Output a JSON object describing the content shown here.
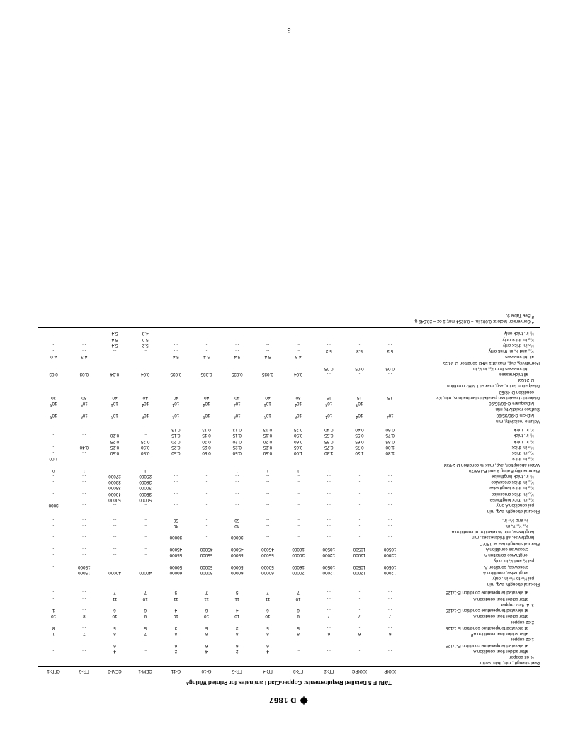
{
  "doc_id": "D 1867",
  "page_number": "3",
  "title": "TABLE 5  Detailed Requirements: Copper-Clad Laminates for Printed Wiring",
  "title_sup": "A",
  "col_widths_pct": [
    26.8,
    6.1,
    6.1,
    6.1,
    6.1,
    6.1,
    6.1,
    6.1,
    6.1,
    6.1,
    6.1,
    6.1,
    6.1
  ],
  "cols": [
    "",
    "XXXP",
    "XXXPC",
    "FR-2",
    "FR-3",
    "FR-4",
    "FR-5",
    "G-10",
    "G-11",
    "CEM-1",
    "CEM-3",
    "FR-6",
    "CFR-1"
  ],
  "rows": [
    {
      "label": "Peel strength, min, lb/in. width:",
      "ind": 0,
      "v": [
        "",
        "",
        "",
        "",
        "",
        "",
        "",
        "",
        "",
        "",
        "",
        ""
      ]
    },
    {
      "label": "½ oz copper",
      "ind": 1,
      "v": [
        "",
        "",
        "",
        "",
        "",
        "",
        "",
        "",
        "",
        "",
        "",
        ""
      ]
    },
    {
      "label": "after solder float condition A",
      "ind": 2,
      "v": [
        "...",
        "...",
        "...",
        "...",
        "4",
        "2",
        "4",
        "2",
        "...",
        "4",
        "...",
        "..."
      ]
    },
    {
      "label": "at elevated temperature condition E-1/125",
      "ind": 2,
      "v": [
        "...",
        "...",
        "...",
        "...",
        "6",
        "6",
        "6",
        "6",
        "...",
        "6",
        "...",
        "..."
      ]
    },
    {
      "label": "1 oz copper",
      "ind": 1,
      "v": [
        "",
        "",
        "",
        "",
        "",
        "",
        "",
        "",
        "",
        "",
        "",
        ""
      ]
    },
    {
      "label": "after solder float condition A<sup><i>B</i></sup>",
      "ind": 2,
      "v": [
        "6",
        "6",
        "6",
        "8",
        "8",
        "8",
        "8",
        "8",
        "7",
        "8",
        "7",
        "1"
      ]
    },
    {
      "label": "at elevated temperature condition E-1/125",
      "ind": 2,
      "v": [
        "...",
        "...",
        "...",
        "5",
        "5",
        "3",
        "5",
        "3",
        "5",
        "5",
        "...",
        "8"
      ]
    },
    {
      "label": "2 oz copper",
      "ind": 1,
      "v": [
        "",
        "",
        "",
        "",
        "",
        "",
        "",
        "",
        "",
        "",
        "",
        ""
      ]
    },
    {
      "label": "after solder float condition A",
      "ind": 2,
      "v": [
        "7",
        "7",
        "7",
        "9",
        "10",
        "10",
        "10",
        "10",
        "9",
        "10",
        "8",
        "10"
      ]
    },
    {
      "label": "at elevated temperature condition E-1/125",
      "ind": 2,
      "v": [
        "...",
        "...",
        "...",
        "6",
        "6",
        "4",
        "6",
        "4",
        "6",
        "6",
        "...",
        "1"
      ]
    },
    {
      "label": "3, 4, 5 oz copper",
      "ind": 1,
      "v": [
        "",
        "",
        "",
        "",
        "",
        "",
        "",
        "",
        "",
        "",
        "",
        ""
      ]
    },
    {
      "label": "after solder float condition A",
      "ind": 2,
      "v": [
        "...",
        "...",
        "...",
        "10",
        "11",
        "11",
        "11",
        "11",
        "10",
        "11",
        "...",
        "..."
      ]
    },
    {
      "label": "at elevated temperature condition E-1/125",
      "ind": 2,
      "v": [
        "...",
        "...",
        "...",
        "7",
        "7",
        "5",
        "7",
        "5",
        "7",
        "7",
        "...",
        "..."
      ]
    },
    {
      "spacer": true
    },
    {
      "label": "Flexural strength, avg, min",
      "ind": 0,
      "v": [
        "",
        "",
        "",
        "",
        "",
        "",
        "",
        "",
        "",
        "",
        "",
        ""
      ]
    },
    {
      "label": "psi ¹⁄₃₂ to ⁷⁄₃₂ in., only",
      "ind": 1,
      "v": [
        "",
        "",
        "",
        "",
        "",
        "",
        "",
        "",
        "",
        "",
        "",
        ""
      ]
    },
    {
      "label": "lengthwise, condition A",
      "ind": 2,
      "v": [
        "12000",
        "12000",
        "12000",
        "20000",
        "60000",
        "60000",
        "60000",
        "60000",
        "40000",
        "40000",
        "15000",
        "..."
      ]
    },
    {
      "label": "crosswise, condition A",
      "ind": 2,
      "v": [
        "10500",
        "10500",
        "10500",
        "16000",
        "50000",
        "50000",
        "50000",
        "50000",
        "",
        "",
        "15000",
        "..."
      ]
    },
    {
      "label": "psi ¹⁄₈ and ¹⁄₄ in. only",
      "ind": 1,
      "v": [
        "",
        "",
        "",
        "",
        "",
        "",
        "",
        "",
        "",
        "",
        "",
        ""
      ]
    },
    {
      "label": "lengthwise condition A",
      "ind": 2,
      "v": [
        "12000",
        "12000",
        "12000",
        "20000",
        "55000",
        "55000",
        "55000",
        "55000",
        "...",
        "...",
        "...",
        "..."
      ]
    },
    {
      "label": "crosswise condition A",
      "ind": 2,
      "v": [
        "10500",
        "10500",
        "10500",
        "16000",
        "45000",
        "45000",
        "45000",
        "45000",
        "...",
        "...",
        "...",
        "..."
      ]
    },
    {
      "label": "Flexural strength test at 150°C",
      "ind": 0,
      "v": [
        "",
        "",
        "",
        "",
        "",
        "",
        "",
        "",
        "",
        "",
        "",
        ""
      ]
    },
    {
      "label": "lengthwise, all thicknesses, min",
      "ind": 1,
      "v": [
        "...",
        "...",
        "...",
        "...",
        "...",
        "30000",
        "...",
        "30000",
        "...",
        "...",
        "...",
        "..."
      ]
    },
    {
      "label": "lengthwise, min % retention of condition A",
      "ind": 1,
      "v": [
        "",
        "",
        "",
        "",
        "",
        "",
        "",
        "",
        "",
        "",
        "",
        ""
      ]
    },
    {
      "label": "¹⁄₈, ¹⁄₈, ¹⁄₄ in.",
      "ind": 2,
      "v": [
        "...",
        "...",
        "...",
        "...",
        "...",
        "40",
        "...",
        "40",
        "...",
        "...",
        "...",
        "..."
      ]
    },
    {
      "label": "¹⁄₈ and ⁹⁄₃₂ in.",
      "ind": 2,
      "v": [
        "...",
        "...",
        "...",
        "...",
        "...",
        "50",
        "...",
        "50",
        "...",
        "...",
        "...",
        "..."
      ]
    },
    {
      "spacer": true
    },
    {
      "label": "Flexural strength, avg, min",
      "ind": 0,
      "v": [
        "",
        "",
        "",
        "",
        "",
        "",
        "",
        "",
        "",
        "",
        "",
        ""
      ]
    },
    {
      "label": "psi condition A only",
      "ind": 1,
      "v": [
        "...",
        "...",
        "...",
        "...",
        "...",
        "...",
        "...",
        "...",
        "...",
        "...",
        "...",
        "3000"
      ]
    },
    {
      "label": "¹⁄₁₆ in. thick lengthwise",
      "ind": 1,
      "v": [
        "...",
        "...",
        "...",
        "...",
        "...",
        "...",
        "...",
        "...",
        "50000",
        "50000",
        "...",
        "..."
      ]
    },
    {
      "label": "¹⁄₁₆ in. thick crosswise",
      "ind": 1,
      "v": [
        "...",
        "...",
        "...",
        "...",
        "...",
        "...",
        "...",
        "...",
        "35000",
        "40000",
        "...",
        "..."
      ]
    },
    {
      "label": "³⁄₃₂ in. thick lengthwise",
      "ind": 1,
      "v": [
        "...",
        "...",
        "...",
        "...",
        "...",
        "...",
        "...",
        "...",
        "30000",
        "33000",
        "...",
        "..."
      ]
    },
    {
      "label": "³⁄₃₂ in. thick crosswise",
      "ind": 1,
      "v": [
        "...",
        "...",
        "...",
        "...",
        "...",
        "...",
        "...",
        "...",
        "28000",
        "32000",
        "...",
        "..."
      ]
    },
    {
      "label": "¹⁄₈ in. thick lengthwise",
      "ind": 1,
      "v": [
        "...",
        "...",
        "...",
        "...",
        "...",
        "...",
        "...",
        "...",
        "25000",
        "27000",
        "...",
        "..."
      ]
    },
    {
      "label": "Flammability Rating A and E-168/70",
      "ind": 0,
      "v": [
        "...",
        "...",
        "1",
        "1",
        "1",
        "1",
        "...",
        "...",
        "1",
        "...",
        "1",
        "0"
      ]
    },
    {
      "label": "Water absorption, avg, max % condition D-24/23",
      "ind": 0,
      "v": [
        "",
        "",
        "",
        "",
        "",
        "",
        "",
        "",
        "",
        "",
        "",
        ""
      ]
    },
    {
      "label": "¹⁄₃₂ in. thick",
      "ind": 1,
      "v": [
        "...",
        "...",
        "...",
        "...",
        "...",
        "...",
        "...",
        "...",
        "...",
        "...",
        "...",
        "1.00"
      ]
    },
    {
      "label": "¹⁄₁₆ in. thick",
      "ind": 1,
      "v": [
        "1.30",
        "1.30",
        "1.30",
        "1.00",
        "0.50",
        "0.50",
        "0.50",
        "0.50",
        "0.50",
        "0.50",
        "...",
        "..."
      ]
    },
    {
      "label": "³⁄₃₂ in. thick",
      "ind": 1,
      "v": [
        "1.00",
        "0.75",
        "0.75",
        "0.65",
        "0.25",
        "0.25",
        "0.25",
        "0.25",
        "0.30",
        "0.25",
        "0.40",
        "..."
      ]
    },
    {
      "label": "¹⁄₈ in. thick",
      "ind": 1,
      "v": [
        "0.85",
        "0.65",
        "0.65",
        "0.60",
        "0.20",
        "0.20",
        "0.20",
        "0.20",
        "0.25",
        "0.25",
        "...",
        "..."
      ]
    },
    {
      "label": "¹⁄₈ in. thick",
      "ind": 1,
      "v": [
        "0.75",
        "0.55",
        "0.55",
        "0.50",
        "0.15",
        "0.15",
        "0.15",
        "0.15",
        "...",
        "0.20",
        "...",
        "..."
      ]
    },
    {
      "label": "¹⁄₄ in. thick",
      "ind": 1,
      "v": [
        "0.60",
        "0.40",
        "0.40",
        "0.25",
        "0.13",
        "0.13",
        "0.13",
        "0.13",
        "...",
        "...",
        "...",
        "..."
      ]
    },
    {
      "spacer": true
    },
    {
      "label": "Volume resistivity, min",
      "ind": 0,
      "v": [
        "",
        "",
        "",
        "",
        "",
        "",
        "",
        "",
        "",
        "",
        "",
        ""
      ]
    },
    {
      "label": "MΩ-cm C-96/35/90",
      "ind": 1,
      "v": [
        "10<sup>4</sup>",
        "10<sup>4</sup>",
        "10<sup>4</sup>",
        "10<sup>6</sup>",
        "10<sup>6</sup>",
        "10<sup>6</sup>",
        "10<sup>6</sup>",
        "10<sup>6</sup>",
        "10<sup>6</sup>",
        "10<sup>6</sup>",
        "10<sup>6</sup>",
        "10<sup>5</sup>"
      ]
    },
    {
      "label": "Surface resistivity, min",
      "ind": 0,
      "v": [
        "",
        "",
        "",
        "",
        "",
        "",
        "",
        "",
        "",
        "",
        "",
        ""
      ]
    },
    {
      "label": "MΩ/square C-96/35/90",
      "ind": 1,
      "v": [
        "",
        "10<sup>3</sup>",
        "10<sup>3</sup>",
        "10<sup>4</sup>",
        "10<sup>4</sup>",
        "10<sup>4</sup>",
        "10<sup>4</sup>",
        "10<sup>4</sup>",
        "10<sup>4</sup>",
        "10<sup>4</sup>",
        "10<sup>5</sup>",
        "10<sup>5</sup>"
      ]
    },
    {
      "label": "Dielectric breakdown parallel to laminations, min, Kv",
      "ind": 0,
      "v": [
        "15",
        "15",
        "15",
        "30",
        "40",
        "40",
        "40",
        "40",
        "40",
        "40",
        "30",
        "30"
      ]
    },
    {
      "label": "condition D-48/50",
      "ind": 1,
      "v": [
        "",
        "",
        "",
        "",
        "",
        "",
        "",
        "",
        "",
        "",
        "",
        ""
      ]
    },
    {
      "label": "Dissipation factor, avg, max at 1 MHz condition",
      "ind": 0,
      "v": [
        "",
        "",
        "",
        "",
        "",
        "",
        "",
        "",
        "",
        "",
        "",
        ""
      ]
    },
    {
      "label": "D-24/23",
      "ind": 1,
      "v": [
        "",
        "",
        "",
        "",
        "",
        "",
        "",
        "",
        "",
        "",
        "",
        ""
      ]
    },
    {
      "label": "all thicknesses",
      "ind": 2,
      "v": [
        "...",
        "...",
        "...",
        "0.04",
        "0.035",
        "0.035",
        "0.035",
        "0.035",
        "0.04",
        "0.04",
        "0.03",
        "0.03"
      ]
    },
    {
      "label": "thicknesses from ¹⁄₁₆ to ¹⁄₄ in.",
      "ind": 2,
      "v": [
        "0.05",
        "0.05",
        "0.05",
        "",
        "",
        "",
        "",
        "",
        "",
        "",
        "",
        ""
      ]
    },
    {
      "label": "Permittivity, avg, max at 1 MHz condition D-24/23",
      "ind": 0,
      "v": [
        "",
        "",
        "",
        "",
        "",
        "",
        "",
        "",
        "",
        "",
        "",
        ""
      ]
    },
    {
      "label": "all thicknesses",
      "ind": 1,
      "v": [
        "...",
        "...",
        "...",
        "4.8",
        "5.4",
        "5.4",
        "5.4",
        "5.4",
        "...",
        "...",
        "4.3",
        "4.0"
      ]
    },
    {
      "label": "¹⁄₃₂ and ¹⁄₄ in. thick only",
      "ind": 1,
      "v": [
        "5.3",
        "5.3",
        "5.3",
        "...",
        "...",
        "...",
        "...",
        "...",
        "...",
        "...",
        "...",
        "..."
      ]
    },
    {
      "label": "¹⁄₁₆ in. thick only",
      "ind": 1,
      "v": [
        "...",
        "...",
        "...",
        "...",
        "...",
        "...",
        "...",
        "...",
        "5.2",
        "5.4",
        "...",
        "..."
      ]
    },
    {
      "label": "³⁄₃₂ in. thick only",
      "ind": 1,
      "v": [
        "...",
        "...",
        "...",
        "...",
        "...",
        "...",
        "...",
        "...",
        "5.0",
        "5.4",
        "...",
        "..."
      ]
    },
    {
      "label": "¹⁄₈ in. thick only",
      "ind": 1,
      "v": [
        "",
        "",
        "",
        "",
        "",
        "",
        "",
        "",
        "4.8",
        "5.4",
        "",
        ""
      ]
    }
  ],
  "footnotes": [
    {
      "sup": "A",
      "text": "Conversion factors: 0.001 in. = 0.0254 mm; 1 oz = 28.349 g."
    },
    {
      "sup": "B",
      "text": "See Table 9."
    }
  ]
}
